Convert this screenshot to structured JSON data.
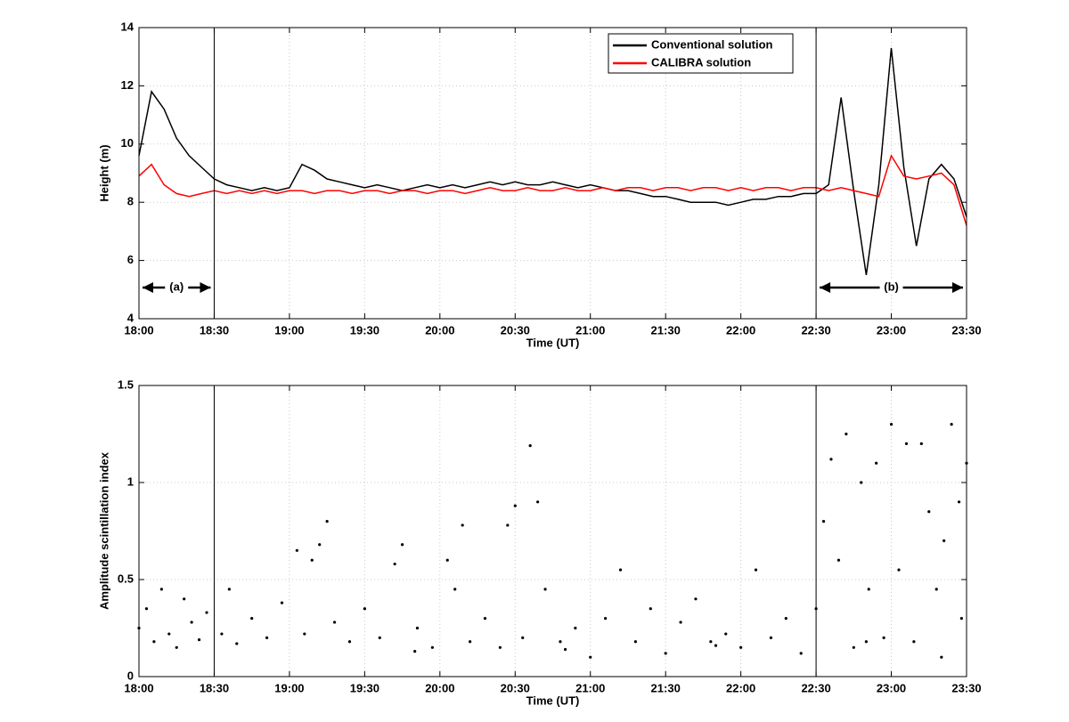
{
  "chart_data": [
    {
      "type": "line",
      "xlabel": "Time (UT)",
      "ylabel": "Height (m)",
      "grid": true,
      "legend": "upper right",
      "xlim": [
        "18:00",
        "23:30"
      ],
      "xticks": [
        "18:00",
        "18:30",
        "19:00",
        "19:30",
        "20:00",
        "20:30",
        "21:00",
        "21:30",
        "22:00",
        "22:30",
        "23:00",
        "23:30"
      ],
      "ylim": [
        4,
        14
      ],
      "yticks": [
        4,
        6,
        8,
        10,
        12,
        14
      ],
      "vlines": [
        "18:30",
        "22:30"
      ],
      "regions": [
        {
          "label": "(a)",
          "start": "18:00",
          "end": "18:30"
        },
        {
          "label": "(b)",
          "start": "22:30",
          "end": "23:30"
        }
      ],
      "x": [
        "18:00",
        "18:05",
        "18:10",
        "18:15",
        "18:20",
        "18:25",
        "18:30",
        "18:35",
        "18:40",
        "18:45",
        "18:50",
        "18:55",
        "19:00",
        "19:05",
        "19:10",
        "19:15",
        "19:20",
        "19:25",
        "19:30",
        "19:35",
        "19:40",
        "19:45",
        "19:50",
        "19:55",
        "20:00",
        "20:05",
        "20:10",
        "20:15",
        "20:20",
        "20:25",
        "20:30",
        "20:35",
        "20:40",
        "20:45",
        "20:50",
        "20:55",
        "21:00",
        "21:05",
        "21:10",
        "21:15",
        "21:20",
        "21:25",
        "21:30",
        "21:35",
        "21:40",
        "21:45",
        "21:50",
        "21:55",
        "22:00",
        "22:05",
        "22:10",
        "22:15",
        "22:20",
        "22:25",
        "22:30",
        "22:35",
        "22:40",
        "22:45",
        "22:50",
        "22:55",
        "23:00",
        "23:05",
        "23:10",
        "23:15",
        "23:20",
        "23:25",
        "23:30"
      ],
      "series": [
        {
          "name": "Conventional solution",
          "color": "#000000",
          "values": [
            9.6,
            11.8,
            11.2,
            10.2,
            9.6,
            9.2,
            8.8,
            8.6,
            8.5,
            8.4,
            8.5,
            8.4,
            8.5,
            9.3,
            9.1,
            8.8,
            8.7,
            8.6,
            8.5,
            8.6,
            8.5,
            8.4,
            8.5,
            8.6,
            8.5,
            8.6,
            8.5,
            8.6,
            8.7,
            8.6,
            8.7,
            8.6,
            8.6,
            8.7,
            8.6,
            8.5,
            8.6,
            8.5,
            8.4,
            8.4,
            8.3,
            8.2,
            8.2,
            8.1,
            8.0,
            8.0,
            8.0,
            7.9,
            8.0,
            8.1,
            8.1,
            8.2,
            8.2,
            8.3,
            8.3,
            8.6,
            11.6,
            8.4,
            5.5,
            8.6,
            13.3,
            9.2,
            6.5,
            8.8,
            9.3,
            8.8,
            7.5
          ]
        },
        {
          "name": "CALIBRA solution",
          "color": "#ff0000",
          "values": [
            8.9,
            9.3,
            8.6,
            8.3,
            8.2,
            8.3,
            8.4,
            8.3,
            8.4,
            8.3,
            8.4,
            8.3,
            8.4,
            8.4,
            8.3,
            8.4,
            8.4,
            8.3,
            8.4,
            8.4,
            8.3,
            8.4,
            8.4,
            8.3,
            8.4,
            8.4,
            8.3,
            8.4,
            8.5,
            8.4,
            8.4,
            8.5,
            8.4,
            8.4,
            8.5,
            8.4,
            8.4,
            8.5,
            8.4,
            8.5,
            8.5,
            8.4,
            8.5,
            8.5,
            8.4,
            8.5,
            8.5,
            8.4,
            8.5,
            8.4,
            8.5,
            8.5,
            8.4,
            8.5,
            8.5,
            8.4,
            8.5,
            8.4,
            8.3,
            8.2,
            9.6,
            8.9,
            8.8,
            8.9,
            9.0,
            8.6,
            7.2
          ]
        }
      ]
    },
    {
      "type": "scatter",
      "xlabel": "Time (UT)",
      "ylabel": "Amplitude scintillation index",
      "grid": true,
      "color": "#000000",
      "xlim": [
        "18:00",
        "23:30"
      ],
      "xticks": [
        "18:00",
        "18:30",
        "19:00",
        "19:30",
        "20:00",
        "20:30",
        "21:00",
        "21:30",
        "22:00",
        "22:30",
        "23:00",
        "23:30"
      ],
      "ylim": [
        0,
        1.5
      ],
      "yticks": [
        0,
        0.5,
        1,
        1.5
      ],
      "vlines": [
        "18:30",
        "22:30"
      ],
      "x": [
        "18:00",
        "18:03",
        "18:06",
        "18:09",
        "18:12",
        "18:15",
        "18:18",
        "18:21",
        "18:24",
        "18:27",
        "18:33",
        "18:36",
        "18:39",
        "18:45",
        "18:51",
        "18:57",
        "19:03",
        "19:06",
        "19:09",
        "19:12",
        "19:15",
        "19:18",
        "19:24",
        "19:30",
        "19:36",
        "19:42",
        "19:45",
        "19:51",
        "19:57",
        "20:03",
        "20:06",
        "20:09",
        "20:12",
        "20:18",
        "20:24",
        "20:27",
        "20:30",
        "20:33",
        "20:36",
        "20:39",
        "20:42",
        "20:48",
        "20:54",
        "21:00",
        "21:06",
        "21:12",
        "21:18",
        "21:24",
        "21:30",
        "21:36",
        "21:42",
        "21:48",
        "21:54",
        "22:00",
        "22:06",
        "22:12",
        "22:18",
        "22:24",
        "22:30",
        "22:33",
        "22:36",
        "22:39",
        "22:42",
        "22:45",
        "22:48",
        "22:51",
        "22:54",
        "22:57",
        "23:00",
        "23:03",
        "23:06",
        "23:09",
        "23:12",
        "23:15",
        "23:18",
        "23:21",
        "23:24",
        "23:27",
        "23:30",
        "23:28",
        "23:20",
        "22:50",
        "21:50",
        "20:50",
        "19:50"
      ],
      "values": [
        0.25,
        0.35,
        0.18,
        0.45,
        0.22,
        0.15,
        0.4,
        0.28,
        0.19,
        0.33,
        0.22,
        0.45,
        0.17,
        0.3,
        0.2,
        0.38,
        0.65,
        0.22,
        0.6,
        0.68,
        0.8,
        0.28,
        0.18,
        0.35,
        0.2,
        0.58,
        0.68,
        0.25,
        0.15,
        0.6,
        0.45,
        0.78,
        0.18,
        0.3,
        0.15,
        0.78,
        0.88,
        0.2,
        1.19,
        0.9,
        0.45,
        0.18,
        0.25,
        0.1,
        0.3,
        0.55,
        0.18,
        0.35,
        0.12,
        0.28,
        0.4,
        0.18,
        0.22,
        0.15,
        0.55,
        0.2,
        0.3,
        0.12,
        0.35,
        0.8,
        1.12,
        0.6,
        1.25,
        0.15,
        1.0,
        0.45,
        1.1,
        0.2,
        1.3,
        0.55,
        1.2,
        0.18,
        1.2,
        0.85,
        0.45,
        0.7,
        1.3,
        0.9,
        1.1,
        0.3,
        0.1,
        0.18,
        0.16,
        0.14,
        0.13
      ]
    }
  ]
}
